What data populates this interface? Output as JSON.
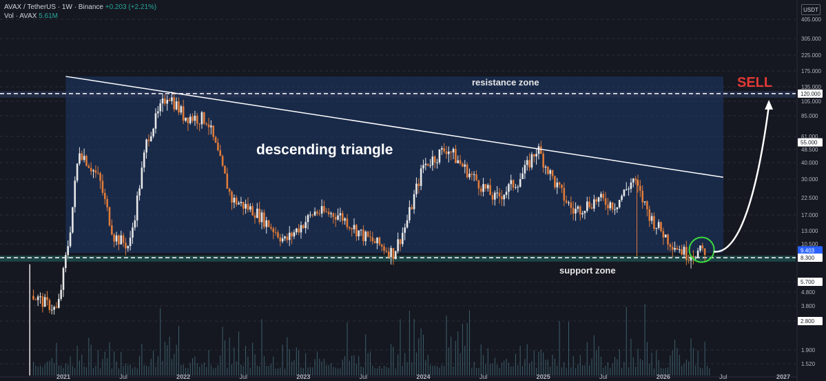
{
  "header": {
    "symbol": "AVAX / TetherUS · 1W · Binance",
    "change": "+0.203 (+2.21%)",
    "vol_label": "Vol · AVAX",
    "vol_value": "5.61M"
  },
  "currency": "USDT",
  "annotations": {
    "resistance": "resistance zone",
    "support": "support zone",
    "pattern": "descending triangle",
    "signal": "SELL"
  },
  "colors": {
    "background": "#151821",
    "bull": "#e8e8e8",
    "bear": "#e07b39",
    "triangle_fill": "#1e3a6b",
    "support_band": "#1f4f4f",
    "sell": "#e53935",
    "circle": "#3ddc3d"
  },
  "chart_data": {
    "type": "candlestick",
    "x_tick_labels": [
      "2021",
      "Jul",
      "2022",
      "Jul",
      "2023",
      "Jul",
      "2024",
      "Jul",
      "2025",
      "Jul",
      "2026",
      "Jul",
      "2027"
    ],
    "y_scale": "log",
    "y_tick_labels": [
      "405.000",
      "305.000",
      "225.000",
      "175.000",
      "135.000",
      "105.000",
      "85.000",
      "61.000",
      "48.500",
      "40.000",
      "30.000",
      "22.500",
      "17.000",
      "13.000",
      "10.500",
      "8.300",
      "5.700",
      "4.800",
      "3.800",
      "2.800",
      "1.900",
      "1.520"
    ],
    "price_badges": [
      {
        "label": "120.000",
        "value": 120
      },
      {
        "label": "55.000",
        "value": 55
      },
      {
        "label": "9.403",
        "value": 9.403
      },
      {
        "label": "8.300",
        "value": 8.3
      },
      {
        "label": "5.700",
        "value": 5.7
      },
      {
        "label": "2.800",
        "value": 2.8
      }
    ],
    "ohlc_anchors": [
      {
        "t": 2020.75,
        "p": 4.5
      },
      {
        "t": 2020.95,
        "p": 3.5
      },
      {
        "t": 2021.05,
        "p": 12
      },
      {
        "t": 2021.13,
        "p": 50
      },
      {
        "t": 2021.3,
        "p": 30
      },
      {
        "t": 2021.42,
        "p": 12
      },
      {
        "t": 2021.55,
        "p": 10
      },
      {
        "t": 2021.7,
        "p": 60
      },
      {
        "t": 2021.87,
        "p": 120
      },
      {
        "t": 2022.0,
        "p": 85
      },
      {
        "t": 2022.2,
        "p": 80
      },
      {
        "t": 2022.4,
        "p": 22
      },
      {
        "t": 2022.6,
        "p": 18
      },
      {
        "t": 2022.85,
        "p": 11
      },
      {
        "t": 2023.1,
        "p": 18
      },
      {
        "t": 2023.3,
        "p": 17
      },
      {
        "t": 2023.5,
        "p": 12
      },
      {
        "t": 2023.75,
        "p": 9
      },
      {
        "t": 2023.85,
        "p": 14
      },
      {
        "t": 2024.0,
        "p": 38
      },
      {
        "t": 2024.2,
        "p": 50
      },
      {
        "t": 2024.4,
        "p": 32
      },
      {
        "t": 2024.6,
        "p": 22
      },
      {
        "t": 2024.8,
        "p": 30
      },
      {
        "t": 2024.95,
        "p": 50
      },
      {
        "t": 2025.1,
        "p": 28
      },
      {
        "t": 2025.25,
        "p": 18
      },
      {
        "t": 2025.45,
        "p": 22
      },
      {
        "t": 2025.6,
        "p": 20
      },
      {
        "t": 2025.75,
        "p": 30
      },
      {
        "t": 2025.9,
        "p": 16
      },
      {
        "t": 2026.05,
        "p": 11
      },
      {
        "t": 2026.2,
        "p": 8.8
      },
      {
        "t": 2026.35,
        "p": 9.4
      }
    ],
    "triangle": {
      "upper_start": 160,
      "upper_end": 31,
      "lower": 9.0
    },
    "resistance_level": 120,
    "support_level": 8.3,
    "projection_target": 105
  }
}
